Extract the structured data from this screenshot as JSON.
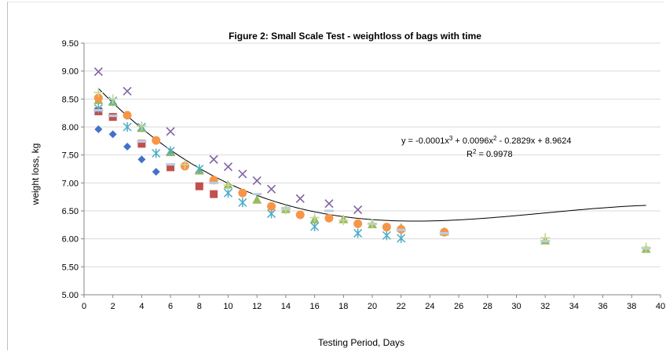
{
  "chart_data": {
    "type": "scatter",
    "title": "Figure 2: Small Scale Test - weightloss of bags with time",
    "xlabel": "Testing Period, Days",
    "ylabel": "weight loss, kg",
    "xlim": [
      0,
      40
    ],
    "ylim": [
      5.0,
      9.5
    ],
    "xticks": [
      "0",
      "2",
      "4",
      "6",
      "8",
      "10",
      "12",
      "14",
      "16",
      "18",
      "20",
      "22",
      "24",
      "26",
      "28",
      "30",
      "32",
      "34",
      "36",
      "38",
      "40"
    ],
    "yticks": [
      "5.00",
      "5.50",
      "6.00",
      "6.50",
      "7.00",
      "7.50",
      "8.00",
      "8.50",
      "9.00",
      "9.50"
    ],
    "grid": true,
    "legend": "none",
    "trendline": {
      "type": "polynomial",
      "coefficients": [
        8.9624,
        -0.2829,
        0.0096,
        -0.0001
      ],
      "x_range": [
        1,
        39
      ]
    },
    "annotations": {
      "equation_prefix": "y = -0.0001x",
      "equation_mid1": " + 0.0096x",
      "equation_mid2": " - 0.2829x + 8.9624",
      "sup3": "3",
      "sup2": "2",
      "r2_prefix": "R",
      "r2_sup": "2",
      "r2_value": " = 0.9978"
    },
    "series": [
      {
        "marker": "diamond",
        "color": "#4472C4",
        "x": [
          1,
          2,
          3,
          4,
          5
        ],
        "y": [
          7.96,
          7.87,
          7.65,
          7.42,
          7.2
        ]
      },
      {
        "marker": "square",
        "color": "#C0504D",
        "x": [
          1,
          2,
          4,
          6,
          8,
          9
        ],
        "y": [
          8.28,
          8.18,
          7.7,
          7.28,
          6.94,
          6.8
        ]
      },
      {
        "marker": "triangle",
        "color": "#9BBB59",
        "x": [
          1,
          2,
          4,
          6,
          8,
          10,
          12,
          14,
          16,
          18,
          20,
          22,
          25,
          32,
          39
        ],
        "y": [
          8.48,
          8.45,
          7.98,
          7.55,
          7.22,
          6.97,
          6.7,
          6.53,
          6.35,
          6.35,
          6.26,
          6.2,
          6.13,
          5.97,
          5.82
        ]
      },
      {
        "marker": "x",
        "color": "#8064A2",
        "x": [
          1,
          3,
          6,
          9,
          10,
          11,
          12,
          13,
          15,
          17,
          19
        ],
        "y": [
          8.99,
          8.64,
          7.92,
          7.42,
          7.29,
          7.16,
          7.04,
          6.89,
          6.72,
          6.63,
          6.52
        ]
      },
      {
        "marker": "star",
        "color": "#4BACC6",
        "x": [
          1,
          2,
          3,
          4,
          5,
          6,
          8,
          10,
          11,
          13,
          16,
          19,
          21,
          22
        ],
        "y": [
          8.33,
          8.47,
          8.0,
          8.0,
          7.53,
          7.57,
          7.25,
          6.82,
          6.65,
          6.45,
          6.22,
          6.1,
          6.06,
          6.01
        ]
      },
      {
        "marker": "circle",
        "color": "#F79646",
        "x": [
          1,
          3,
          5,
          7,
          9,
          11,
          13,
          15,
          17,
          19,
          21,
          22,
          25
        ],
        "y": [
          8.52,
          8.21,
          7.76,
          7.3,
          7.05,
          6.82,
          6.58,
          6.43,
          6.37,
          6.27,
          6.21,
          6.17,
          6.12
        ]
      },
      {
        "marker": "dash",
        "color": "#B9CDE5",
        "x": [
          1,
          2,
          4,
          6,
          9,
          12,
          14,
          17,
          20,
          22,
          25,
          32,
          39
        ],
        "y": [
          8.3,
          8.2,
          7.74,
          7.33,
          7.0,
          6.8,
          6.55,
          6.5,
          6.27,
          6.16,
          6.1,
          5.96,
          5.83
        ]
      },
      {
        "marker": "plus",
        "color": "#C4D79B",
        "x": [
          1,
          2,
          4,
          7,
          10,
          14,
          16,
          18,
          20,
          32,
          39
        ],
        "y": [
          8.62,
          8.5,
          8.02,
          7.33,
          6.96,
          6.52,
          6.38,
          6.33,
          6.27,
          6.02,
          5.85
        ]
      }
    ]
  }
}
